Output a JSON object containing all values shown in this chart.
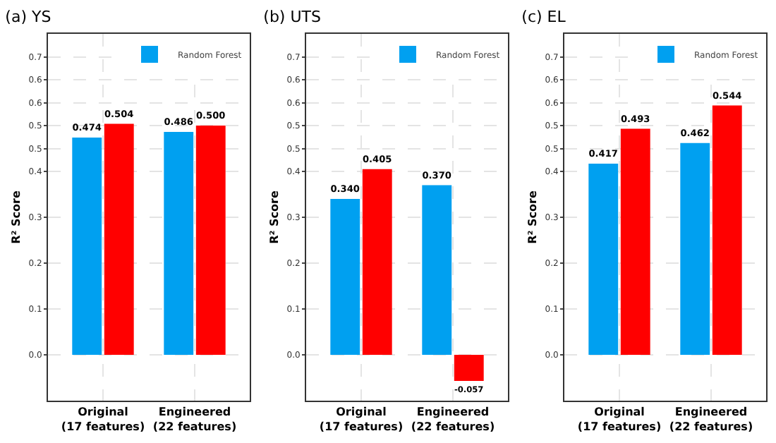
{
  "chart_data": [
    {
      "type": "bar",
      "title": "(a) YS",
      "ylabel": "R² Score",
      "categories": [
        "Original\n(17 features)",
        "Engineered\n(22 features)"
      ],
      "series": [
        {
          "name": "Random Forest",
          "color": "#00a0f0",
          "values": [
            0.474,
            0.486
          ],
          "value_labels": [
            "0.474",
            "0.486"
          ]
        },
        {
          "color": "#ff0000",
          "values": [
            0.504,
            0.5
          ],
          "value_labels": [
            "0.504",
            "0.500"
          ]
        }
      ],
      "ylim": [
        -0.1,
        0.7
      ],
      "yticks": [
        {
          "value": 0,
          "label": "0.0"
        },
        {
          "value": 0.1,
          "label": "0.1"
        },
        {
          "value": 0.2,
          "label": "0.2"
        },
        {
          "value": 0.3,
          "label": "0.3"
        },
        {
          "value": 0.4,
          "label": "0.4"
        },
        {
          "value": 0.45,
          "label": "0.5"
        },
        {
          "value": 0.5,
          "label": "0.5"
        },
        {
          "value": 0.55,
          "label": "0.6"
        },
        {
          "value": 0.6,
          "label": "0.6"
        },
        {
          "value": 0.65,
          "label": "0.7"
        }
      ],
      "grid": true,
      "legend": "top right"
    },
    {
      "type": "bar",
      "title": "(b) UTS",
      "ylabel": "R² Score",
      "categories": [
        "Original\n(17 features)",
        "Engineered\n(22 features)"
      ],
      "series": [
        {
          "name": "Random Forest",
          "color": "#00a0f0",
          "values": [
            0.34,
            0.37
          ],
          "value_labels": [
            "0.340",
            "0.370"
          ]
        },
        {
          "color": "#ff0000",
          "values": [
            0.405,
            -0.057
          ],
          "value_labels": [
            "0.405",
            "-0.057"
          ]
        }
      ],
      "ylim": [
        -0.1,
        0.7
      ],
      "yticks": [
        {
          "value": 0,
          "label": "0.0"
        },
        {
          "value": 0.1,
          "label": "0.1"
        },
        {
          "value": 0.2,
          "label": "0.2"
        },
        {
          "value": 0.3,
          "label": "0.3"
        },
        {
          "value": 0.4,
          "label": "0.4"
        },
        {
          "value": 0.45,
          "label": "0.5"
        },
        {
          "value": 0.5,
          "label": "0.5"
        },
        {
          "value": 0.55,
          "label": "0.6"
        },
        {
          "value": 0.6,
          "label": "0.6"
        },
        {
          "value": 0.65,
          "label": "0.7"
        }
      ],
      "grid": true,
      "legend": "top right"
    },
    {
      "type": "bar",
      "title": "(c) EL",
      "ylabel": "R² Score",
      "categories": [
        "Original\n(17 features)",
        "Engineered\n(22 features)"
      ],
      "series": [
        {
          "name": "Random Forest",
          "color": "#00a0f0",
          "values": [
            0.417,
            0.462
          ],
          "value_labels": [
            "0.417",
            "0.462"
          ]
        },
        {
          "color": "#ff0000",
          "values": [
            0.493,
            0.544
          ],
          "value_labels": [
            "0.493",
            "0.544"
          ]
        }
      ],
      "ylim": [
        -0.1,
        0.7
      ],
      "yticks": [
        {
          "value": 0,
          "label": "0.0"
        },
        {
          "value": 0.1,
          "label": "0.1"
        },
        {
          "value": 0.2,
          "label": "0.2"
        },
        {
          "value": 0.3,
          "label": "0.3"
        },
        {
          "value": 0.4,
          "label": "0.4"
        },
        {
          "value": 0.45,
          "label": "0.5"
        },
        {
          "value": 0.5,
          "label": "0.5"
        },
        {
          "value": 0.55,
          "label": "0.6"
        },
        {
          "value": 0.6,
          "label": "0.6"
        },
        {
          "value": 0.65,
          "label": "0.7"
        }
      ],
      "grid": true,
      "legend": "top right"
    }
  ]
}
